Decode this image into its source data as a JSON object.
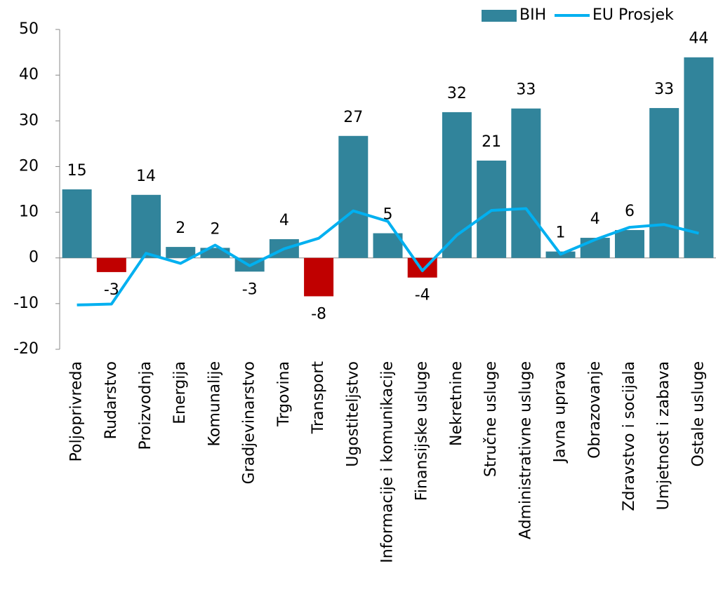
{
  "chart_data": {
    "type": "bar-line",
    "categories": [
      "Poljoprivreda",
      "Rudarstvo",
      "Proizvodnja",
      "Energija",
      "Komunalije",
      "Gradjevinarstvo",
      "Trgovina",
      "Transport",
      "Ugostiteljstvo",
      "Informacije i komunikacije",
      "Finansijske usluge",
      "Nekretnine",
      "Stručne usluge",
      "Administrativne usluge",
      "Javna uprava",
      "Obrazovanje",
      "Zdravstvo i socijala",
      "Umjetnost i zabava",
      "Ostale usluge"
    ],
    "series": [
      {
        "name": "BIH",
        "type": "bar",
        "values": [
          15.0,
          -3.1,
          13.8,
          2.4,
          2.2,
          -3.0,
          4.1,
          -8.4,
          26.7,
          5.4,
          -4.3,
          31.9,
          21.3,
          32.7,
          1.4,
          4.4,
          6.1,
          32.8,
          43.9
        ],
        "value_labels": [
          "15",
          "-3",
          "14",
          "2",
          "2",
          "-3",
          "4",
          "-8",
          "27",
          "5",
          "-4",
          "32",
          "21",
          "33",
          "1",
          "4",
          "6",
          "33",
          "44"
        ],
        "color": "#31849b",
        "colors": [
          "#31849b",
          "#c00000",
          "#31849b",
          "#31849b",
          "#31849b",
          "#31849b",
          "#31849b",
          "#c00000",
          "#31849b",
          "#31849b",
          "#c00000",
          "#31849b",
          "#31849b",
          "#31849b",
          "#31849b",
          "#31849b",
          "#31849b",
          "#31849b",
          "#31849b"
        ]
      },
      {
        "name": "EU Prosjek",
        "type": "line",
        "color": "#00b0f0",
        "values": [
          -10.3,
          -10.1,
          1.0,
          -1.2,
          2.8,
          -1.7,
          2.0,
          4.3,
          10.3,
          8.0,
          -2.8,
          5.0,
          10.4,
          10.8,
          0.8,
          4.0,
          6.7,
          7.3,
          5.4
        ]
      }
    ],
    "ylim": [
      -20,
      50
    ],
    "yticks": [
      -20,
      -10,
      0,
      10,
      20,
      30,
      40,
      50
    ],
    "legend": "top-right"
  }
}
